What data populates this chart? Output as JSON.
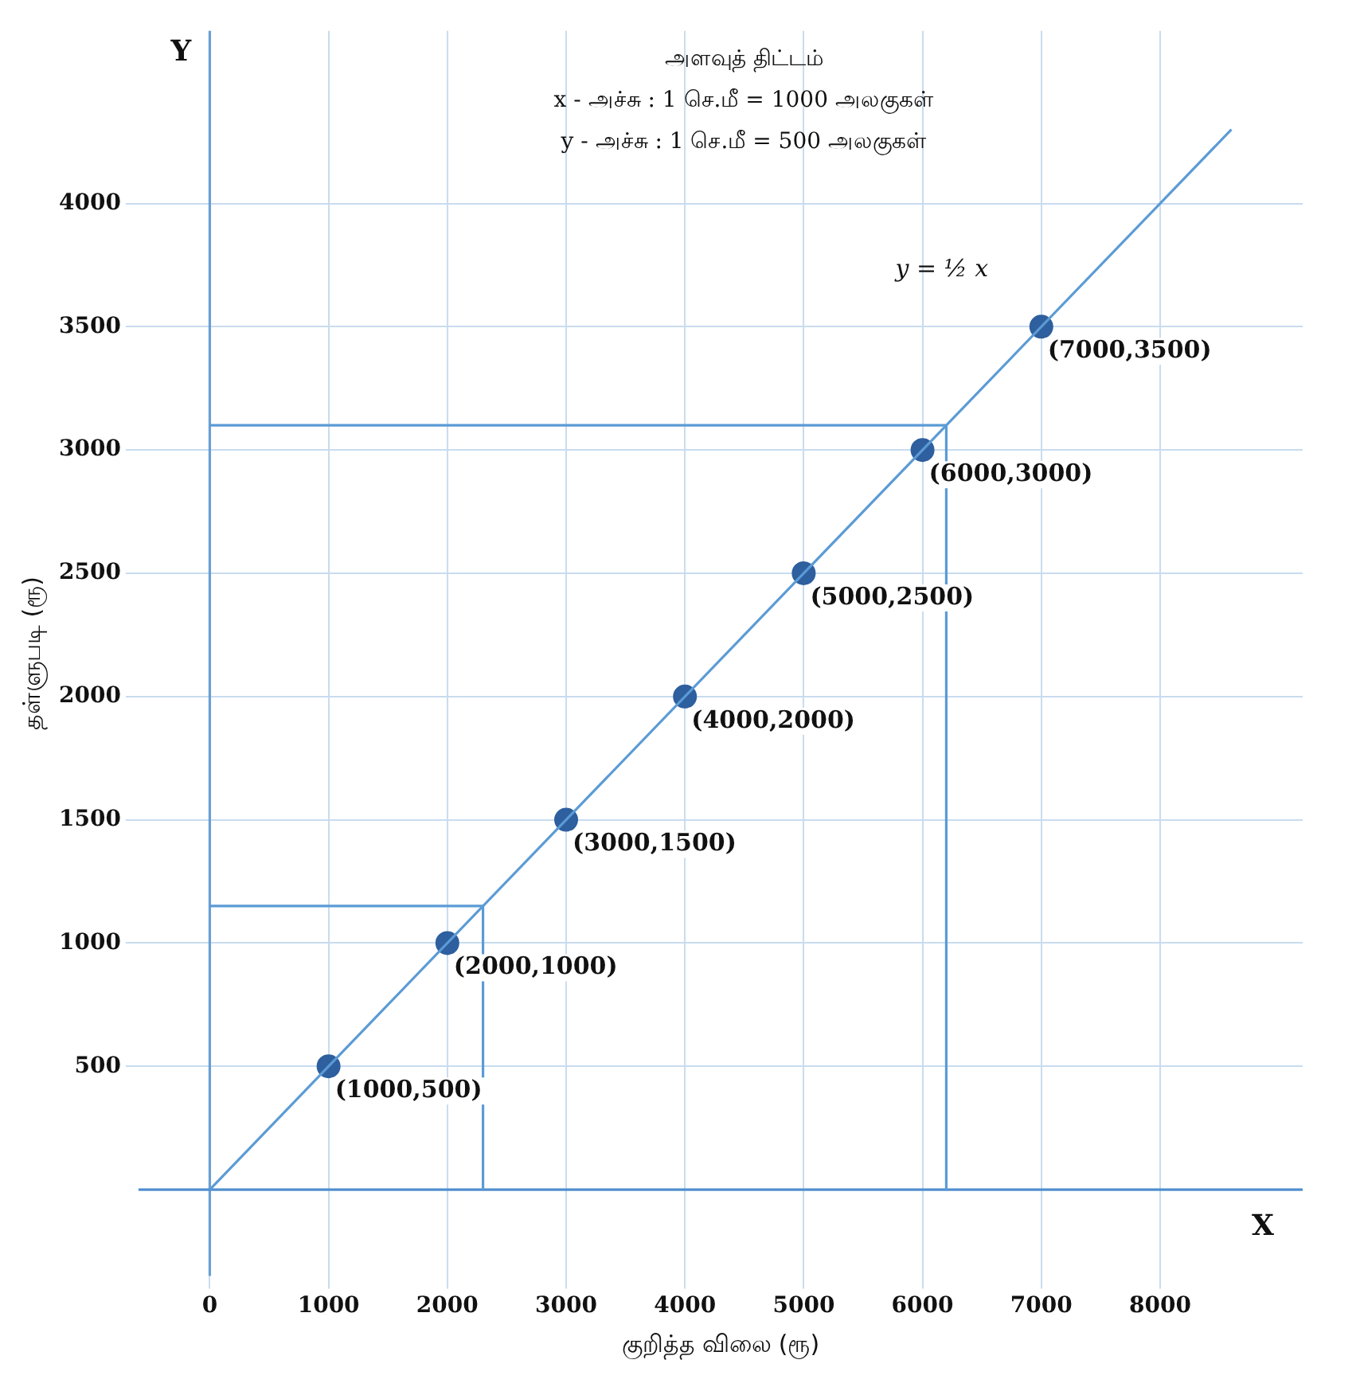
{
  "chart_data": {
    "type": "line",
    "xlabel": "குறித்த விலை (ரூ)",
    "ylabel": "தள்ளுபடி (ரூ)",
    "annotations": [
      "அளவுத் திட்டம்",
      "x - அச்சு : 1 செ.மீ = 1000 அலகுகள்",
      "y - அச்சு : 1 செ.மீ = 500 அலகுகள்",
      "y = ½ x",
      "X",
      "Y"
    ],
    "xlim": [
      -600,
      9200
    ],
    "ylim": [
      -350,
      4700
    ],
    "xticks": [
      0,
      1000,
      2000,
      3000,
      4000,
      5000,
      6000,
      7000,
      8000
    ],
    "yticks": [
      500,
      1000,
      1500,
      2000,
      2500,
      3000,
      3500,
      4000
    ],
    "grid": true,
    "ref_lines": [
      {
        "axis": "x",
        "value": 0,
        "color": "#6a9fd4"
      },
      {
        "axis": "y",
        "value": 0,
        "color": "#4f8fcf"
      }
    ],
    "series": [
      {
        "type": "line",
        "color": "#5b9bd5",
        "x": [
          0,
          8600
        ],
        "values": [
          0,
          4300
        ]
      },
      {
        "type": "scatter",
        "color": "#2e5f9e",
        "marker": "circle",
        "x": [
          1000,
          2000,
          3000,
          4000,
          5000,
          6000,
          7000
        ],
        "values": [
          500,
          1000,
          1500,
          2000,
          2500,
          3000,
          3500
        ],
        "value_labels": [
          "(1000,500)",
          "(2000,1000)",
          "(3000,1500)",
          "(4000,2000)",
          "(5000,2500)",
          "(6000,3000)",
          "(7000,3500)"
        ]
      },
      {
        "type": "line",
        "color": "#5b9bd5",
        "x": [
          0,
          6200,
          6200
        ],
        "values": [
          3100,
          3100,
          0
        ]
      },
      {
        "type": "line",
        "color": "#5b9bd5",
        "x": [
          0,
          2300,
          2300
        ],
        "values": [
          1150,
          1150,
          0
        ]
      }
    ]
  }
}
